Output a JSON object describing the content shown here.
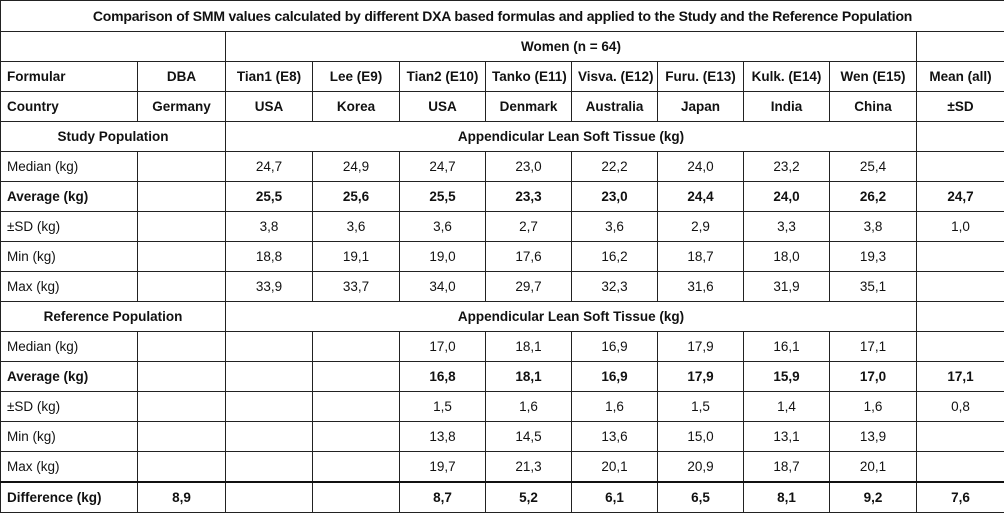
{
  "title": "Comparison of SMM values calculated by different DXA based formulas and applied to the Study and the Reference Population",
  "subtitle": "Women (n = 64)",
  "header_rows": [
    [
      "Formular",
      "DBA",
      "Tian1 (E8)",
      "Lee (E9)",
      "Tian2 (E10)",
      "Tanko (E11)",
      "Visva. (E12)",
      "Furu. (E13)",
      "Kulk. (E14)",
      "Wen (E15)",
      "Mean (all)"
    ],
    [
      "Country",
      "Germany",
      "USA",
      "Korea",
      "USA",
      "Denmark",
      "Australia",
      "Japan",
      "India",
      "China",
      "±SD"
    ]
  ],
  "sections": [
    {
      "title": "Study Population",
      "span_label": "Appendicular Lean Soft Tissue (kg)",
      "rows": [
        {
          "label": "Median (kg)",
          "values": [
            null,
            "24,7",
            "24,9",
            "24,7",
            "23,0",
            "22,2",
            "24,0",
            "23,2",
            "25,4",
            null
          ]
        },
        {
          "label": "Average (kg)",
          "bold": true,
          "values": [
            null,
            "25,5",
            "25,6",
            "25,5",
            "23,3",
            "23,0",
            "24,4",
            "24,0",
            "26,2",
            "24,7"
          ]
        },
        {
          "label": "±SD (kg)",
          "values": [
            null,
            "3,8",
            "3,6",
            "3,6",
            "2,7",
            "3,6",
            "2,9",
            "3,3",
            "3,8",
            "1,0"
          ]
        },
        {
          "label": "Min (kg)",
          "values": [
            null,
            "18,8",
            "19,1",
            "19,0",
            "17,6",
            "16,2",
            "18,7",
            "18,0",
            "19,3",
            null
          ]
        },
        {
          "label": "Max (kg)",
          "values": [
            null,
            "33,9",
            "33,7",
            "34,0",
            "29,7",
            "32,3",
            "31,6",
            "31,9",
            "35,1",
            null
          ]
        }
      ]
    },
    {
      "title": "Reference Population",
      "span_label": "Appendicular Lean Soft Tissue (kg)",
      "rows": [
        {
          "label": "Median (kg)",
          "values": [
            null,
            null,
            null,
            "17,0",
            "18,1",
            "16,9",
            "17,9",
            "16,1",
            "17,1",
            null
          ]
        },
        {
          "label": "Average (kg)",
          "bold": true,
          "values": [
            null,
            null,
            null,
            "16,8",
            "18,1",
            "16,9",
            "17,9",
            "15,9",
            "17,0",
            "17,1"
          ]
        },
        {
          "label": "±SD (kg)",
          "values": [
            null,
            null,
            null,
            "1,5",
            "1,6",
            "1,6",
            "1,5",
            "1,4",
            "1,6",
            "0,8"
          ]
        },
        {
          "label": "Min (kg)",
          "values": [
            null,
            null,
            null,
            "13,8",
            "14,5",
            "13,6",
            "15,0",
            "13,1",
            "13,9",
            null
          ]
        },
        {
          "label": "Max (kg)",
          "values": [
            null,
            null,
            null,
            "19,7",
            "21,3",
            "20,1",
            "20,9",
            "18,7",
            "20,1",
            null
          ]
        }
      ]
    }
  ],
  "footer": {
    "label": "Difference (kg)",
    "bold": true,
    "values": [
      "8,9",
      null,
      null,
      "8,7",
      "5,2",
      "6,1",
      "6,5",
      "8,1",
      "9,2",
      "7,6"
    ]
  }
}
